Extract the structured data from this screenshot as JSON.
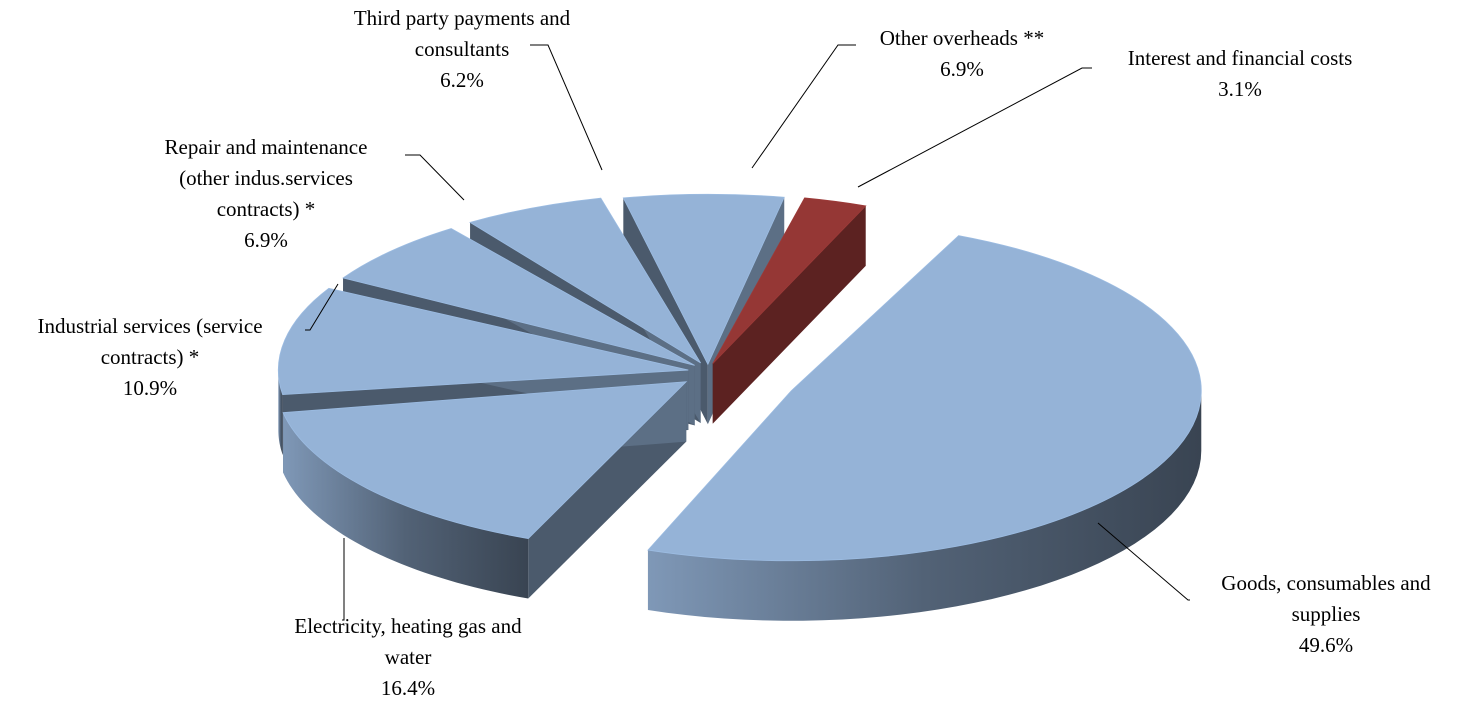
{
  "chart_data": {
    "type": "pie",
    "style": "3d-exploded",
    "slices": [
      {
        "label_lines": [
          "Goods, consumables and",
          "supplies"
        ],
        "value": 49.6,
        "value_label": "49.6%",
        "color": "#95b3d7"
      },
      {
        "label_lines": [
          "Electricity, heating gas and",
          "water"
        ],
        "value": 16.4,
        "value_label": "16.4%",
        "color": "#95b3d7"
      },
      {
        "label_lines": [
          "Industrial services (service",
          "contracts) *"
        ],
        "value": 10.9,
        "value_label": "10.9%",
        "color": "#95b3d7"
      },
      {
        "label_lines": [
          "Repair and maintenance",
          "(other indus.services",
          "contracts) *"
        ],
        "value": 6.9,
        "value_label": "6.9%",
        "color": "#95b3d7"
      },
      {
        "label_lines": [
          "Third party payments and",
          "consultants"
        ],
        "value": 6.2,
        "value_label": "6.2%",
        "color": "#95b3d7"
      },
      {
        "label_lines": [
          "Other overheads **"
        ],
        "value": 6.9,
        "value_label": "6.9%",
        "color": "#95b3d7"
      },
      {
        "label_lines": [
          "Interest and financial costs"
        ],
        "value": 3.1,
        "value_label": "3.1%",
        "color": "#953735"
      }
    ],
    "legend": "none",
    "data_labels": "outside with leader lines"
  }
}
